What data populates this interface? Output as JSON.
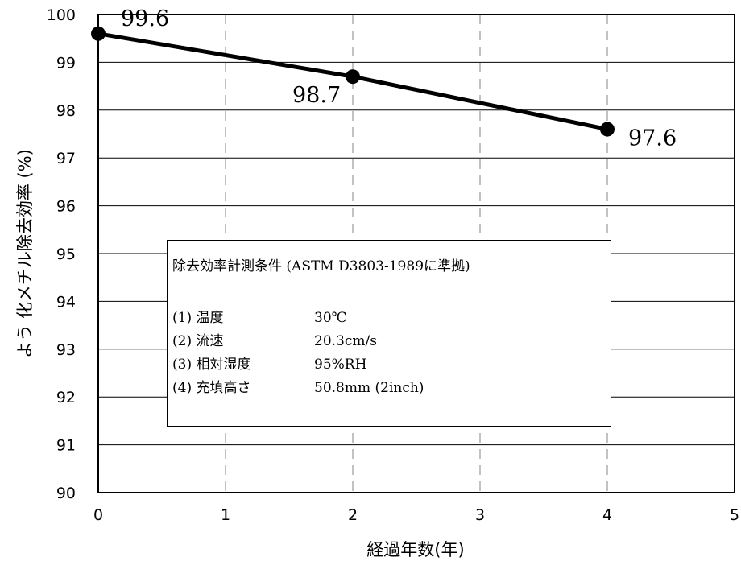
{
  "chart_data": {
    "type": "line",
    "title": "",
    "xlabel": "経過年数(年)",
    "ylabel": "よう 化メチル除去効率 (%)",
    "xlim": [
      0,
      5
    ],
    "ylim": [
      90,
      100
    ],
    "xticks": [
      "0",
      "1",
      "2",
      "3",
      "4",
      "5"
    ],
    "yticks": [
      "90",
      "91",
      "92",
      "93",
      "94",
      "95",
      "96",
      "97",
      "98",
      "99",
      "100"
    ],
    "grid": "y-solid, x-dashed",
    "series": [
      {
        "x": [
          0,
          2,
          4
        ],
        "y": [
          99.6,
          98.7,
          97.6
        ],
        "labels": [
          "99.6",
          "98.7",
          "97.6"
        ]
      }
    ],
    "annotation_box": {
      "title": "除去効率計測条件 (ASTM D3803-1989に準拠)",
      "rows": [
        {
          "key": "(1) 温度",
          "value": "30℃"
        },
        {
          "key": "(2) 流速",
          "value": "20.3cm/s"
        },
        {
          "key": "(3) 相対湿度",
          "value": "95%RH"
        },
        {
          "key": "(4) 充填高さ",
          "value": "50.8mm (2inch)"
        }
      ]
    }
  }
}
